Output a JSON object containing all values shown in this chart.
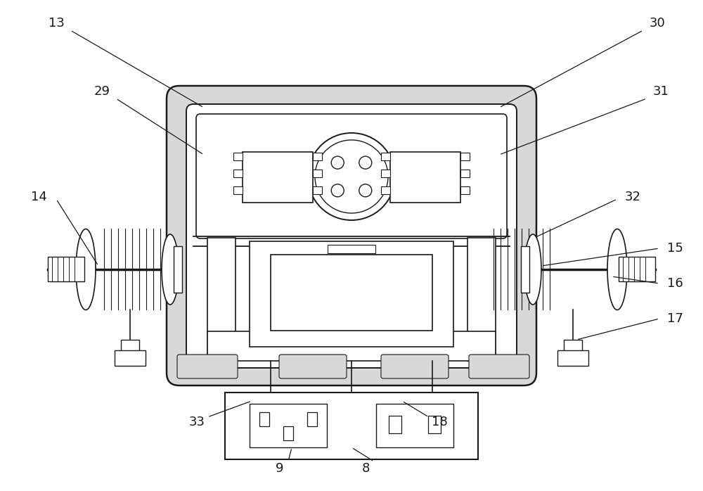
{
  "bg_color": "#ffffff",
  "line_color": "#1a1a1a",
  "dot_fill": "#d8d8d8",
  "figsize": [
    10.0,
    6.98
  ],
  "dpi": 100
}
